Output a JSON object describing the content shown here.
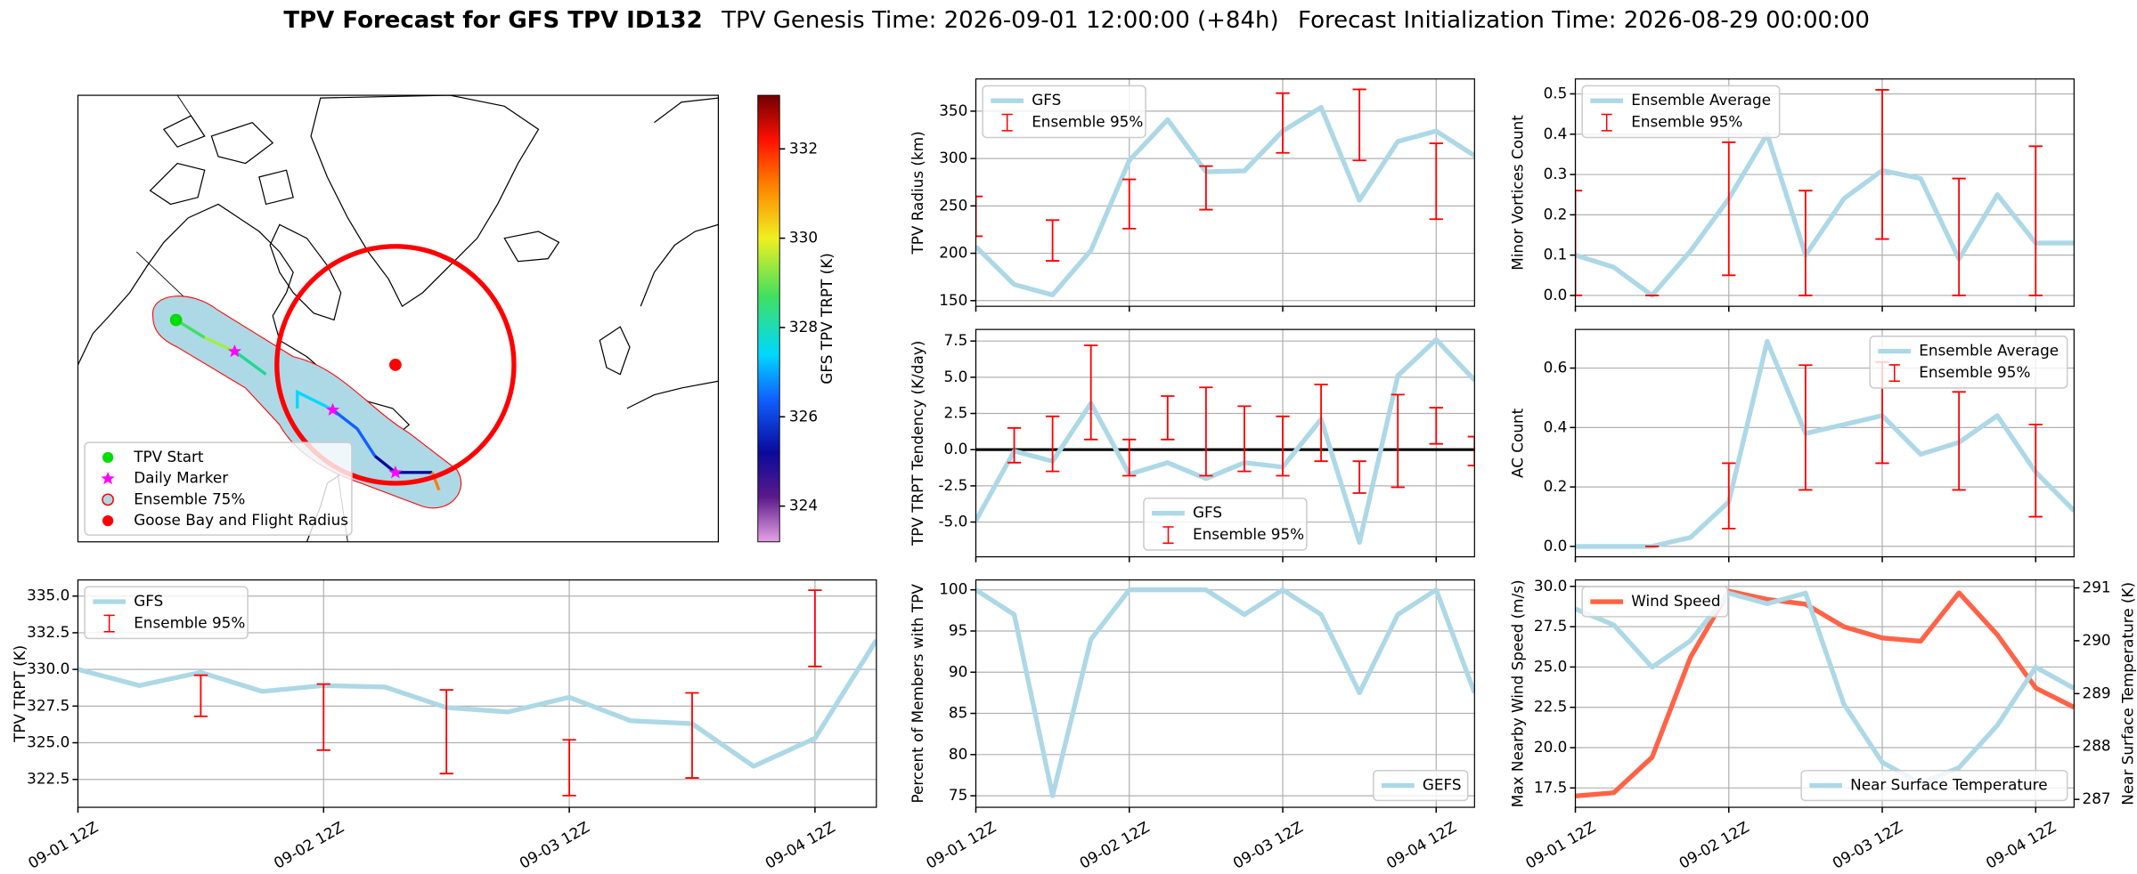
{
  "title": {
    "main": "TPV Forecast for GFS TPV ID132",
    "genesis": "TPV Genesis Time: 2026-09-01 12:00:00 (+84h)",
    "init": "Forecast Initialization Time: 2026-08-29 00:00:00"
  },
  "chart_data": [
    {
      "type": "map",
      "colorbar": {
        "label": "GFS TPV TRPT (K)",
        "lim": [
          323.2,
          333.2
        ],
        "ticks": [
          324,
          326,
          328,
          330,
          332
        ]
      },
      "legend": {
        "corner": "lower left",
        "entries": [
          "TPV Start",
          "Daily Marker",
          "Ensemble 75%",
          "Goose Bay and Flight Radius"
        ]
      }
    },
    {
      "type": "line",
      "ylabel": "TPV Radius (km)",
      "ylim": [
        144,
        384
      ],
      "yticks": [
        150,
        200,
        250,
        300,
        350
      ],
      "grid": true,
      "legend": "upper left",
      "series": [
        {
          "name": "GFS",
          "color": "#add8e6",
          "values": [
            207,
            167,
            156,
            203,
            298,
            341,
            286,
            287,
            329,
            354,
            256,
            318,
            329,
            303
          ]
        }
      ],
      "error": {
        "name": "Ensemble 95%",
        "color": "#ff0000",
        "lower": [
          218,
          null,
          192,
          null,
          226,
          null,
          246,
          null,
          306,
          null,
          298,
          null,
          236,
          null
        ],
        "upper": [
          260,
          null,
          235,
          null,
          278,
          null,
          292,
          null,
          369,
          null,
          373,
          null,
          316,
          null
        ]
      }
    },
    {
      "type": "line",
      "ylabel": "TPV TRPT Tendency (K/day)",
      "ylim": [
        -7.4,
        8.3
      ],
      "yticks": [
        {
          "value": -5,
          "label": "-5.0"
        },
        -2.5,
        {
          "value": 0,
          "label": "0.0"
        },
        2.5,
        {
          "value": 5,
          "label": "5.0"
        },
        7.5
      ],
      "grid": true,
      "legend": "lower center",
      "reference_line": 0,
      "series": [
        {
          "name": "GFS",
          "color": "#add8e6",
          "values": [
            -4.9,
            -0.1,
            -0.8,
            3.2,
            -1.7,
            -0.9,
            -2.0,
            -0.9,
            -1.2,
            2.1,
            -6.4,
            5.1,
            7.6,
            4.8
          ]
        }
      ],
      "error": {
        "name": "Ensemble 95%",
        "color": "#ff0000",
        "lower": [
          null,
          -0.9,
          -1.5,
          0.7,
          -1.8,
          0.7,
          -1.8,
          -1.5,
          -1.8,
          -0.8,
          -3.0,
          -2.6,
          0.4,
          -1.1
        ],
        "upper": [
          null,
          1.5,
          2.3,
          7.2,
          0.7,
          3.7,
          4.3,
          3.0,
          2.3,
          4.5,
          -0.8,
          3.8,
          2.9,
          0.9
        ]
      }
    },
    {
      "type": "line",
      "ylabel": "Percent of Members with TPV",
      "ylim": [
        73.6,
        101.2
      ],
      "yticks": [
        75,
        80,
        85,
        90,
        95,
        100
      ],
      "grid": true,
      "legend": "lower right",
      "categories": [
        "09-01 12Z",
        null,
        null,
        null,
        "09-02 12Z",
        null,
        null,
        null,
        "09-03 12Z",
        null,
        null,
        null,
        "09-04 12Z",
        null
      ],
      "series": [
        {
          "name": "GEFS",
          "color": "#add8e6",
          "values": [
            100,
            97,
            75,
            94,
            100,
            100,
            100,
            97,
            100,
            97,
            87.5,
            97,
            100,
            87.5
          ]
        }
      ]
    },
    {
      "type": "line",
      "ylabel": "Minor Vortices Count",
      "ylim": [
        -0.027,
        0.537
      ],
      "yticks": [
        {
          "value": 0,
          "label": "0.0"
        },
        0.1,
        0.2,
        0.3,
        0.4,
        0.5
      ],
      "grid": true,
      "legend": "upper left",
      "series": [
        {
          "name": "Ensemble Average",
          "color": "#add8e6",
          "values": [
            0.1,
            0.07,
            0.0,
            0.11,
            0.24,
            0.4,
            0.1,
            0.24,
            0.31,
            0.29,
            0.09,
            0.25,
            0.13,
            0.13
          ]
        }
      ],
      "error": {
        "name": "Ensemble 95%",
        "color": "#ff0000",
        "lower": [
          0,
          null,
          0,
          null,
          0.05,
          null,
          0,
          null,
          0.14,
          null,
          0,
          null,
          0,
          null
        ],
        "upper": [
          0.26,
          null,
          0,
          null,
          0.38,
          null,
          0.26,
          null,
          0.51,
          null,
          0.29,
          null,
          0.37,
          null
        ]
      }
    },
    {
      "type": "line",
      "ylabel": "AC Count",
      "ylim": [
        -0.035,
        0.73
      ],
      "yticks": [
        {
          "value": 0,
          "label": "0.0"
        },
        0.2,
        0.4,
        0.6
      ],
      "grid": true,
      "legend": "upper right",
      "series": [
        {
          "name": "Ensemble Average",
          "color": "#add8e6",
          "values": [
            0,
            0,
            0,
            0.03,
            0.15,
            0.69,
            0.38,
            0.41,
            0.44,
            0.31,
            0.35,
            0.44,
            0.25,
            0.12
          ]
        }
      ],
      "error": {
        "name": "Ensemble 95%",
        "color": "#ff0000",
        "lower": [
          null,
          null,
          0,
          null,
          0.06,
          null,
          0.19,
          null,
          0.28,
          null,
          0.19,
          null,
          0.1,
          null
        ],
        "upper": [
          null,
          null,
          0,
          null,
          0.28,
          null,
          0.61,
          null,
          0.62,
          null,
          0.52,
          null,
          0.41,
          null
        ]
      }
    },
    {
      "type": "line",
      "ylabel": "TPV TRPT (K)",
      "ylim": [
        320.6,
        336.1
      ],
      "yticks": [
        322.5,
        {
          "value": 325,
          "label": "325.0"
        },
        327.5,
        {
          "value": 330,
          "label": "330.0"
        },
        332.5,
        {
          "value": 335,
          "label": "335.0"
        }
      ],
      "grid": true,
      "legend": "upper left",
      "categories": [
        "09-01 12Z",
        null,
        null,
        null,
        "09-02 12Z",
        null,
        null,
        null,
        "09-03 12Z",
        null,
        null,
        null,
        "09-04 12Z",
        null
      ],
      "series": [
        {
          "name": "GFS",
          "color": "#add8e6",
          "values": [
            330.0,
            328.9,
            329.8,
            328.5,
            328.9,
            328.8,
            327.4,
            327.1,
            328.1,
            326.5,
            326.3,
            323.4,
            325.3,
            332.0
          ]
        }
      ],
      "error": {
        "name": "Ensemble 95%",
        "color": "#ff0000",
        "lower": [
          null,
          null,
          326.8,
          null,
          324.5,
          null,
          322.9,
          null,
          321.4,
          null,
          322.6,
          null,
          330.2,
          null
        ],
        "upper": [
          null,
          null,
          329.6,
          null,
          329.0,
          null,
          328.6,
          null,
          325.2,
          null,
          328.4,
          null,
          335.4,
          null
        ]
      }
    },
    {
      "type": "line",
      "ylabel": "Max Nearby Wind Speed (m/s)",
      "y2label": "Near Surface Temperature (K)",
      "ylim": [
        16.3,
        30.4
      ],
      "yticks": [
        17.5,
        {
          "value": 20,
          "label": "20.0"
        },
        22.5,
        {
          "value": 25,
          "label": "25.0"
        },
        27.5,
        {
          "value": 30,
          "label": "30.0"
        }
      ],
      "y2lim": [
        286.85,
        291.15
      ],
      "y2ticks": [
        287,
        288,
        289,
        290,
        291
      ],
      "y2_color": "#4169e1",
      "grid": true,
      "legend": "upper left",
      "legend2": "lower right",
      "categories": [
        "09-01 12Z",
        null,
        null,
        null,
        "09-02 12Z",
        null,
        null,
        null,
        "09-03 12Z",
        null,
        null,
        null,
        "09-04 12Z",
        null
      ],
      "series": [
        {
          "name": "Wind Speed",
          "color": "#ff6347",
          "values": [
            17.0,
            17.2,
            19.4,
            25.6,
            29.7,
            29.2,
            28.9,
            27.5,
            26.8,
            26.6,
            29.6,
            27.0,
            23.7,
            22.5
          ]
        },
        {
          "name": "Near Surface Temperature",
          "color": "#add8e6",
          "axis": "y2",
          "values": [
            290.6,
            290.3,
            289.5,
            290.0,
            290.9,
            290.7,
            290.9,
            288.8,
            287.7,
            287.3,
            287.6,
            288.4,
            289.5,
            289.1
          ]
        }
      ]
    }
  ]
}
